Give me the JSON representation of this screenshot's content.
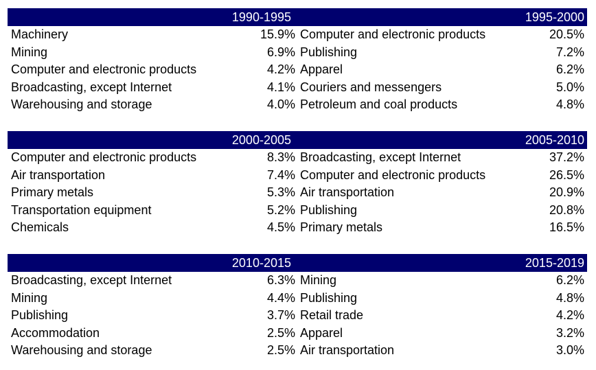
{
  "blocks": [
    {
      "left_period": "1990-1995",
      "right_period": "1995-2000",
      "rows": [
        {
          "left_name": "Machinery",
          "left_value": "15.9%",
          "right_name": "Computer and electronic products",
          "right_value": "20.5%"
        },
        {
          "left_name": "Mining",
          "left_value": "6.9%",
          "right_name": "Publishing",
          "right_value": "7.2%"
        },
        {
          "left_name": "Computer and electronic products",
          "left_value": "4.2%",
          "right_name": "Apparel",
          "right_value": "6.2%"
        },
        {
          "left_name": "Broadcasting, except Internet",
          "left_value": "4.1%",
          "right_name": "Couriers and messengers",
          "right_value": "5.0%"
        },
        {
          "left_name": "Warehousing and storage",
          "left_value": "4.0%",
          "right_name": "Petroleum and coal products",
          "right_value": "4.8%"
        }
      ]
    },
    {
      "left_period": "2000-2005",
      "right_period": "2005-2010",
      "rows": [
        {
          "left_name": "Computer and electronic products",
          "left_value": "8.3%",
          "right_name": "Broadcasting, except Internet",
          "right_value": "37.2%"
        },
        {
          "left_name": "Air transportation",
          "left_value": "7.4%",
          "right_name": "Computer and electronic products",
          "right_value": "26.5%"
        },
        {
          "left_name": "Primary metals",
          "left_value": "5.3%",
          "right_name": "Air transportation",
          "right_value": "20.9%"
        },
        {
          "left_name": "Transportation equipment",
          "left_value": "5.2%",
          "right_name": "Publishing",
          "right_value": "20.8%"
        },
        {
          "left_name": "Chemicals",
          "left_value": "4.5%",
          "right_name": "Primary metals",
          "right_value": "16.5%"
        }
      ]
    },
    {
      "left_period": "2010-2015",
      "right_period": "2015-2019",
      "rows": [
        {
          "left_name": "Broadcasting, except Internet",
          "left_value": "6.3%",
          "right_name": "Mining",
          "right_value": "6.2%"
        },
        {
          "left_name": "Mining",
          "left_value": "4.4%",
          "right_name": "Publishing",
          "right_value": "4.8%"
        },
        {
          "left_name": "Publishing",
          "left_value": "3.7%",
          "right_name": "Retail trade",
          "right_value": "4.2%"
        },
        {
          "left_name": "Accommodation",
          "left_value": "2.5%",
          "right_name": "Apparel",
          "right_value": "3.2%"
        },
        {
          "left_name": "Warehousing and storage",
          "left_value": "2.5%",
          "right_name": "Air transportation",
          "right_value": "3.0%"
        }
      ]
    }
  ],
  "colors": {
    "header_background": "#00006e",
    "header_text": "#ffffff",
    "body_text": "#000000"
  }
}
